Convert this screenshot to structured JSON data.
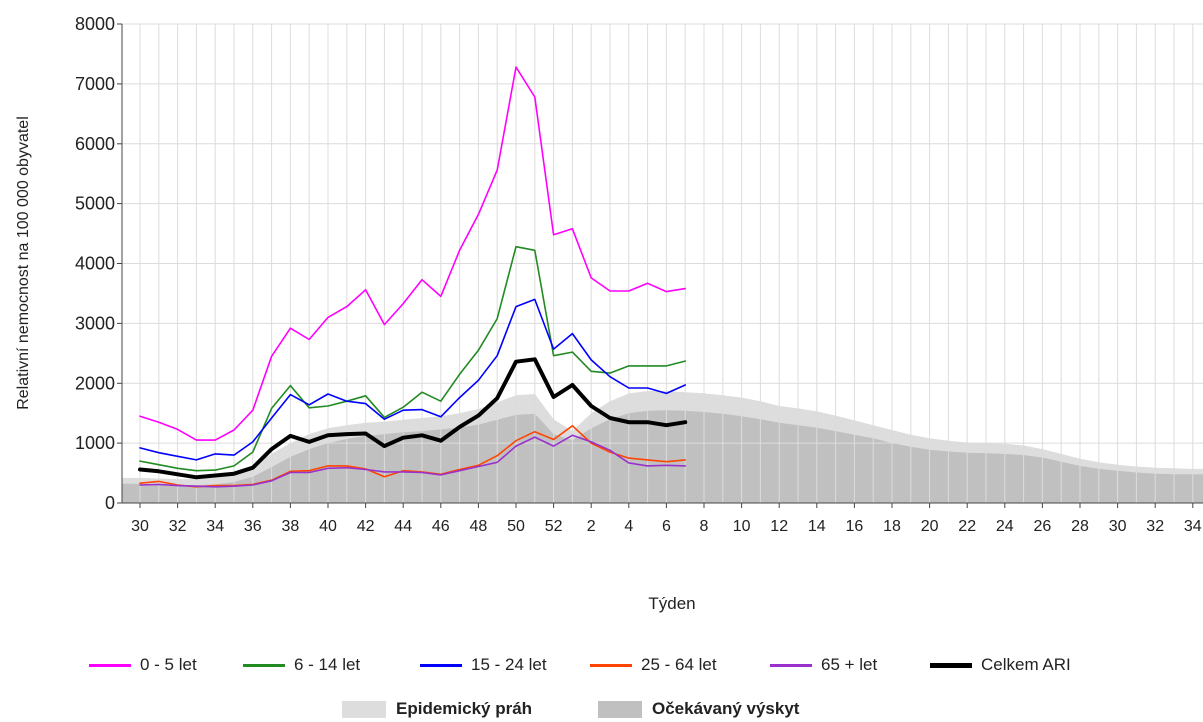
{
  "chart_data": {
    "type": "line",
    "xlabel": "Týden",
    "ylabel": "Relativní nemocnost na 100 000 obyvatel",
    "ylim": [
      0,
      8000
    ],
    "yticks": [
      0,
      1000,
      2000,
      3000,
      4000,
      5000,
      6000,
      7000,
      8000
    ],
    "xtick_labels": [
      "30",
      "32",
      "34",
      "36",
      "38",
      "40",
      "42",
      "44",
      "46",
      "48",
      "50",
      "52",
      "2",
      "4",
      "6",
      "8",
      "10",
      "12",
      "14",
      "16",
      "18",
      "20",
      "22",
      "24",
      "26",
      "28",
      "30",
      "32",
      "34"
    ],
    "weeks": [
      30,
      31,
      32,
      33,
      34,
      35,
      36,
      37,
      38,
      39,
      40,
      41,
      42,
      43,
      44,
      45,
      46,
      47,
      48,
      49,
      50,
      51,
      52,
      1,
      2,
      3,
      4,
      5,
      6,
      7,
      8,
      9,
      10,
      11,
      12,
      13,
      14,
      15,
      16,
      17,
      18,
      19,
      20,
      21,
      22,
      23,
      24,
      25,
      26,
      27,
      28,
      29,
      30,
      31,
      32,
      33,
      34
    ],
    "grid": true,
    "legend": "bottom",
    "series": [
      {
        "name": "0 - 5 let",
        "color": "#ff00ff",
        "values": [
          1450,
          1350,
          1230,
          1050,
          1050,
          1220,
          1550,
          2450,
          2920,
          2730,
          3100,
          3280,
          3560,
          2980,
          3330,
          3730,
          3450,
          4220,
          4820,
          5560,
          7280,
          6780,
          4480,
          4580,
          3760,
          3540,
          3540,
          3670,
          3530,
          3580
        ]
      },
      {
        "name": "6 - 14 let",
        "color": "#228b22",
        "values": [
          700,
          640,
          580,
          540,
          550,
          620,
          850,
          1580,
          1960,
          1590,
          1620,
          1700,
          1790,
          1430,
          1600,
          1850,
          1700,
          2150,
          2550,
          3080,
          4280,
          4220,
          2460,
          2520,
          2200,
          2170,
          2290,
          2290,
          2290,
          2370
        ]
      },
      {
        "name": "15 - 24 let",
        "color": "#0000ff",
        "values": [
          920,
          840,
          780,
          720,
          820,
          800,
          1020,
          1420,
          1810,
          1640,
          1820,
          1700,
          1660,
          1400,
          1550,
          1560,
          1440,
          1760,
          2050,
          2460,
          3280,
          3400,
          2570,
          2830,
          2390,
          2110,
          1920,
          1920,
          1830,
          1970
        ]
      },
      {
        "name": "25 - 64 let",
        "color": "#ff4500",
        "values": [
          330,
          360,
          300,
          270,
          290,
          290,
          310,
          380,
          530,
          540,
          620,
          620,
          570,
          440,
          540,
          520,
          480,
          560,
          630,
          790,
          1040,
          1190,
          1060,
          1290,
          1000,
          850,
          750,
          720,
          690,
          720
        ]
      },
      {
        "name": "65 + let",
        "color": "#9932cc",
        "values": [
          300,
          310,
          290,
          280,
          270,
          280,
          300,
          370,
          510,
          510,
          580,
          590,
          560,
          520,
          520,
          510,
          470,
          540,
          610,
          680,
          950,
          1100,
          950,
          1130,
          1020,
          880,
          670,
          620,
          630,
          620
        ]
      },
      {
        "name": "Celkem ARI",
        "color": "#000000",
        "values": [
          560,
          530,
          480,
          430,
          460,
          490,
          590,
          900,
          1120,
          1020,
          1130,
          1150,
          1160,
          950,
          1090,
          1130,
          1040,
          1270,
          1460,
          1750,
          2360,
          2400,
          1770,
          1970,
          1620,
          1420,
          1350,
          1350,
          1300,
          1350
        ]
      }
    ],
    "areas": [
      {
        "name": "Epidemický práh",
        "color": "#dddddd",
        "values": [
          420,
          410,
          400,
          400,
          420,
          480,
          620,
          820,
          1000,
          1150,
          1250,
          1300,
          1340,
          1360,
          1390,
          1420,
          1450,
          1500,
          1570,
          1680,
          1800,
          1820,
          1400,
          1200,
          1500,
          1700,
          1830,
          1870,
          1870,
          1850,
          1830,
          1800,
          1760,
          1700,
          1620,
          1580,
          1530,
          1460,
          1380,
          1300,
          1220,
          1140,
          1080,
          1040,
          1010,
          1000,
          990,
          960,
          900,
          820,
          740,
          680,
          640,
          610,
          590,
          580,
          570
        ]
      },
      {
        "name": "Očekávaný výskyt",
        "color": "#c0c0c0",
        "values": [
          320,
          310,
          300,
          300,
          310,
          350,
          440,
          600,
          770,
          900,
          1000,
          1070,
          1120,
          1150,
          1180,
          1200,
          1230,
          1260,
          1310,
          1390,
          1470,
          1490,
          1150,
          1050,
          1250,
          1400,
          1500,
          1540,
          1550,
          1540,
          1520,
          1490,
          1450,
          1400,
          1340,
          1300,
          1260,
          1200,
          1140,
          1080,
          1000,
          940,
          890,
          860,
          840,
          830,
          820,
          800,
          760,
          690,
          620,
          570,
          540,
          510,
          490,
          480,
          480
        ]
      }
    ]
  }
}
